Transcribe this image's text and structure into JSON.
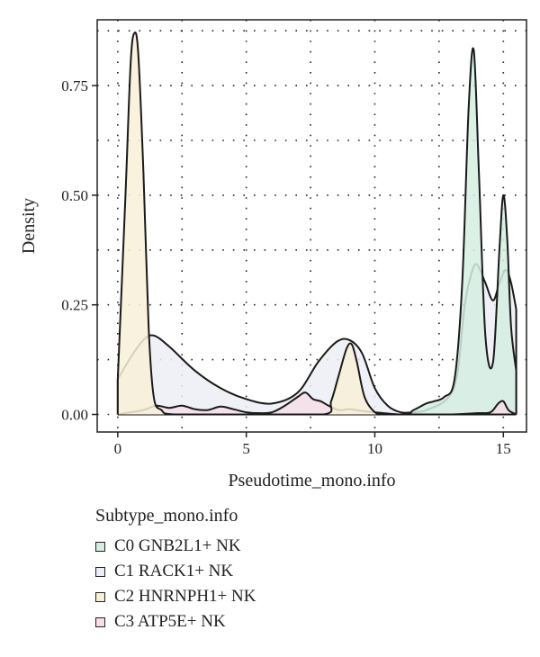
{
  "chart_data": {
    "type": "area",
    "xlabel": "Pseudotime_mono.info",
    "ylabel": "Density",
    "xlim": [
      -0.8,
      15.9
    ],
    "ylim": [
      -0.04,
      0.9
    ],
    "x_ticks": [
      0,
      5,
      10,
      15
    ],
    "x_tick_labels": [
      "0",
      "5",
      "10",
      "15"
    ],
    "y_ticks": [
      0.0,
      0.25,
      0.5,
      0.75
    ],
    "y_tick_labels": [
      "0.00",
      "0.25",
      "0.50",
      "0.75"
    ],
    "grid": "dotted",
    "legend_title": "Subtype_mono.info",
    "legend_position": "bottom",
    "series": [
      {
        "name": "C0 GNB2L1+ NK",
        "color": "#d5eee2",
        "x": [
          0,
          2,
          5,
          8,
          11,
          11.5,
          12,
          12.3,
          12.7,
          13.1,
          13.4,
          13.65,
          13.85,
          14.05,
          14.3,
          14.6,
          14.85,
          15.0,
          15.15,
          15.3,
          15.5
        ],
        "y": [
          0,
          0,
          0,
          0,
          0,
          0.01,
          0.025,
          0.03,
          0.04,
          0.08,
          0.3,
          0.7,
          0.83,
          0.55,
          0.18,
          0.12,
          0.38,
          0.5,
          0.4,
          0.2,
          0.1
        ]
      },
      {
        "name": "C1 RACK1+ NK",
        "color": "#eceef5",
        "x": [
          0,
          0.5,
          1.0,
          1.4,
          2.0,
          3.0,
          4.0,
          5.0,
          6.0,
          7.0,
          7.8,
          8.5,
          9.0,
          9.5,
          10.0,
          10.5,
          11.0,
          11.5,
          12.0,
          12.8,
          13.2,
          13.5,
          13.8,
          14.0,
          14.3,
          14.6,
          14.85,
          15.1,
          15.3,
          15.5
        ],
        "y": [
          0.08,
          0.13,
          0.17,
          0.18,
          0.155,
          0.1,
          0.06,
          0.035,
          0.025,
          0.05,
          0.12,
          0.165,
          0.17,
          0.14,
          0.06,
          0.02,
          0.005,
          0.005,
          0.01,
          0.035,
          0.09,
          0.25,
          0.33,
          0.34,
          0.3,
          0.26,
          0.3,
          0.33,
          0.3,
          0.24
        ]
      },
      {
        "name": "C2 HNRNPH1+ NK",
        "color": "#f7f0d8",
        "x": [
          0,
          0.3,
          0.5,
          0.65,
          0.8,
          1.0,
          1.2,
          1.4,
          1.7,
          2.2,
          5,
          8.0,
          8.3,
          8.6,
          8.9,
          9.1,
          9.3,
          9.6,
          10.0,
          10.3,
          11,
          15.5
        ],
        "y": [
          0.08,
          0.5,
          0.8,
          0.87,
          0.82,
          0.55,
          0.2,
          0.04,
          0.01,
          0,
          0,
          0,
          0.03,
          0.09,
          0.15,
          0.16,
          0.12,
          0.04,
          0.005,
          0,
          0,
          0
        ]
      },
      {
        "name": "C3 ATP5E+ NK",
        "color": "#f5dee6",
        "x": [
          0,
          0.5,
          1.0,
          1.5,
          2.0,
          2.5,
          3.0,
          3.5,
          4.0,
          4.5,
          5.0,
          5.5,
          6.0,
          6.5,
          7.0,
          7.3,
          7.6,
          7.9,
          8.2,
          8.6,
          9.0,
          9.5,
          10.0,
          11.0,
          12.0,
          13.0,
          14.0,
          14.5,
          14.8,
          15.0,
          15.2,
          15.5
        ],
        "y": [
          0.0,
          0.005,
          0.01,
          0.02,
          0.015,
          0.02,
          0.012,
          0.01,
          0.018,
          0.012,
          0.005,
          0.003,
          0.005,
          0.02,
          0.04,
          0.05,
          0.035,
          0.03,
          0.02,
          0.01,
          0.012,
          0.008,
          0.005,
          0.0,
          0.0,
          0.0,
          0.003,
          0.005,
          0.025,
          0.03,
          0.01,
          0.0
        ]
      }
    ]
  }
}
